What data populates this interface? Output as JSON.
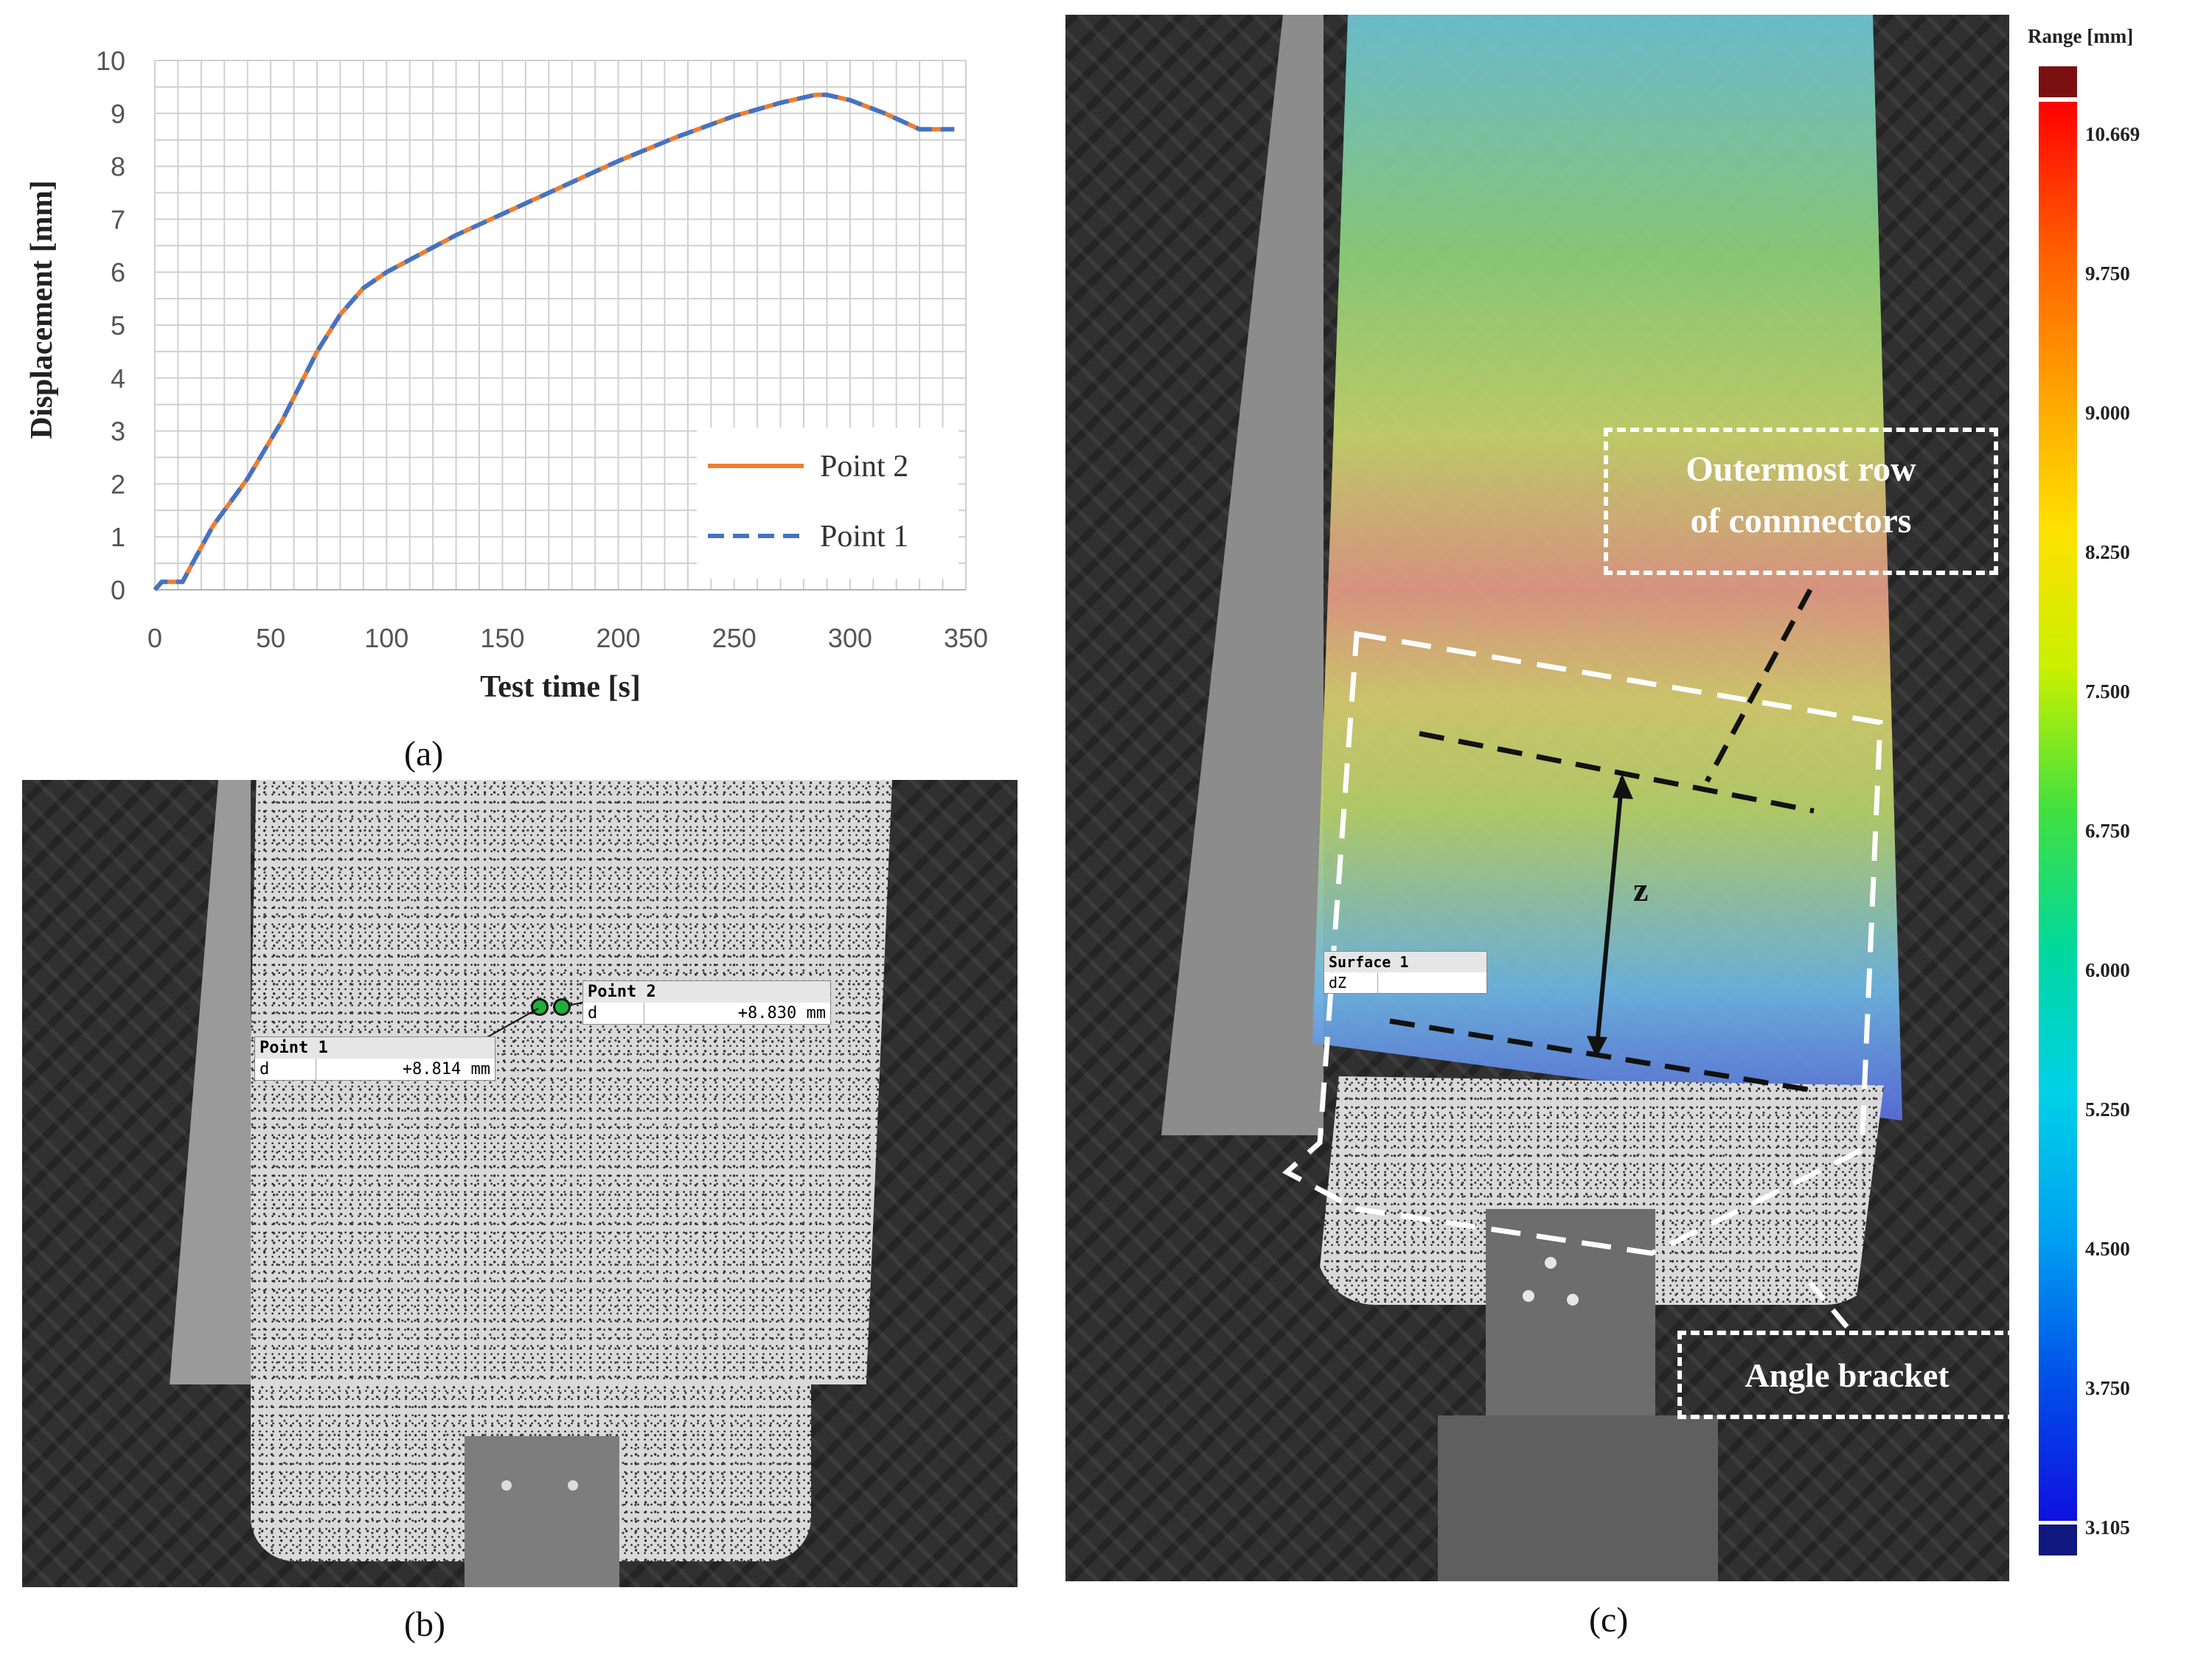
{
  "panels": {
    "a": {
      "caption": "(a)"
    },
    "b": {
      "caption": "(b)",
      "point1": {
        "name": "Point 1",
        "field": "d",
        "value": "+8.814 mm"
      },
      "point2": {
        "name": "Point 2",
        "field": "d",
        "value": "+8.830 mm"
      }
    },
    "c": {
      "caption": "(c)",
      "surface": {
        "name": "Surface 1",
        "field": "dZ"
      },
      "label_outer": "Outermost row of connnectors",
      "label_outer_line1": "Outermost row",
      "label_outer_line2": "of connnectors",
      "label_bracket": "Angle bracket",
      "label_z": "z",
      "colorbar": {
        "title": "Range [mm]",
        "ticks": [
          "10.669",
          "9.750",
          "9.000",
          "8.250",
          "7.500",
          "6.750",
          "6.000",
          "5.250",
          "4.500",
          "3.750",
          "3.105"
        ],
        "colors": {
          "top": "#7a1010",
          "bottom": "#101880"
        }
      }
    }
  },
  "chart_data": {
    "type": "line",
    "xlabel": "Test time [s]",
    "ylabel": "Displacement [mm]",
    "xlim": [
      0,
      350
    ],
    "ylim": [
      0,
      10
    ],
    "xticks": [
      0,
      50,
      100,
      150,
      200,
      250,
      300,
      350
    ],
    "yticks": [
      0,
      1,
      2,
      3,
      4,
      5,
      6,
      7,
      8,
      9,
      10
    ],
    "grid": true,
    "legend_position": "bottom-right",
    "series": [
      {
        "name": "Point 2",
        "color": "#ed7d31",
        "style": "solid",
        "x": [
          0,
          3,
          12,
          15,
          20,
          25,
          40,
          55,
          70,
          80,
          90,
          100,
          115,
          130,
          150,
          175,
          200,
          225,
          250,
          270,
          285,
          290,
          300,
          315,
          330,
          345
        ],
        "y": [
          0,
          0.15,
          0.15,
          0.4,
          0.8,
          1.2,
          2.1,
          3.2,
          4.5,
          5.2,
          5.7,
          6.0,
          6.35,
          6.7,
          7.1,
          7.6,
          8.1,
          8.55,
          8.95,
          9.2,
          9.35,
          9.35,
          9.25,
          9.0,
          8.7,
          8.7
        ]
      },
      {
        "name": "Point 1",
        "color": "#4472c4",
        "style": "dashed",
        "x": [
          0,
          3,
          12,
          15,
          20,
          25,
          40,
          55,
          70,
          80,
          90,
          100,
          115,
          130,
          150,
          175,
          200,
          225,
          250,
          270,
          285,
          290,
          300,
          315,
          330,
          345
        ],
        "y": [
          0,
          0.15,
          0.15,
          0.4,
          0.8,
          1.2,
          2.1,
          3.2,
          4.5,
          5.2,
          5.7,
          6.0,
          6.35,
          6.7,
          7.1,
          7.6,
          8.1,
          8.55,
          8.95,
          9.2,
          9.35,
          9.35,
          9.25,
          9.0,
          8.7,
          8.7
        ]
      }
    ]
  }
}
